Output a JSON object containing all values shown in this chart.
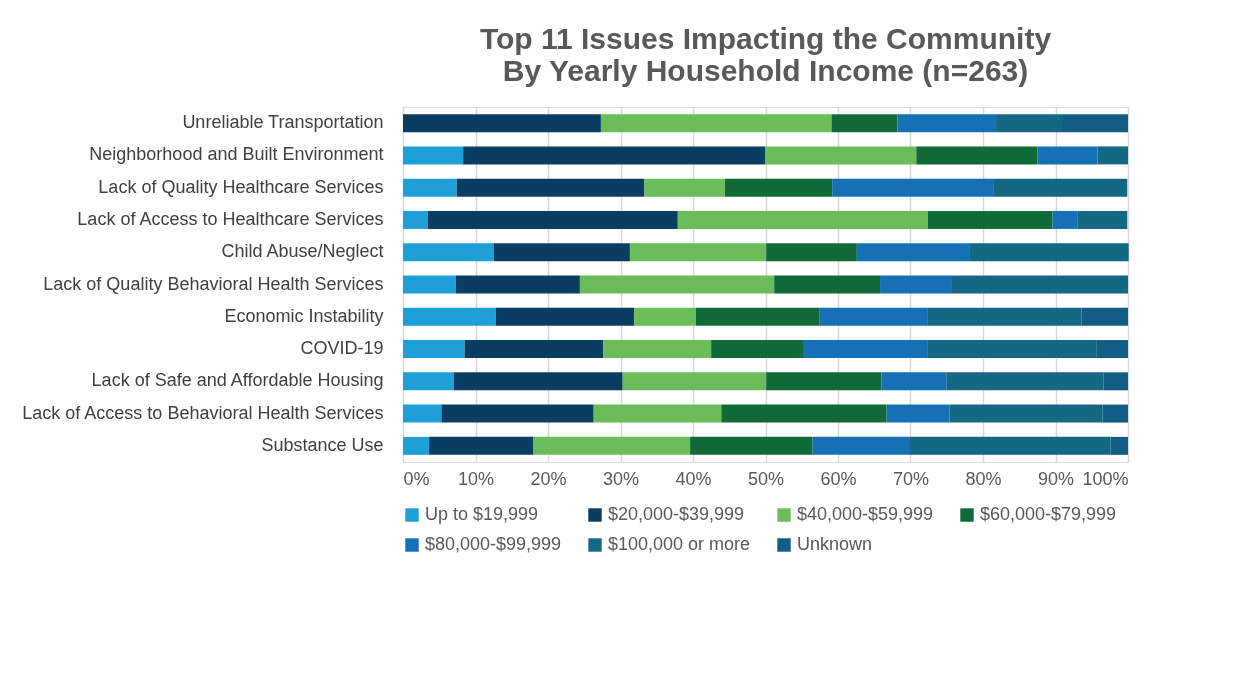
{
  "chart_data": {
    "type": "bar",
    "orientation": "horizontal",
    "stacked": true,
    "title": "Top 11 Issues Impacting the Community\nBy Yearly Household Income (n=263)",
    "categories": [
      "Unreliable Transportation",
      "Neighborhood and Built Environment",
      "Lack of Quality Healthcare Services",
      "Lack of Access to Healthcare Services",
      "Child Abuse/Neglect",
      "Lack of Quality Behavioral Health Services",
      "Economic Instability",
      "COVID-19",
      "Lack of Safe and Affordable Housing",
      "Lack of Access to Behavioral Health Services",
      "Substance Use"
    ],
    "series": [
      {
        "name": "Up to $19,999",
        "color": "#1f9fd8",
        "values": [
          0,
          8.3,
          7.4,
          3.4,
          12.5,
          7.3,
          12.8,
          8.5,
          7.0,
          5.3,
          3.6
        ]
      },
      {
        "name": "$20,000-$39,999",
        "color": "#0b3d63",
        "values": [
          27.3,
          41.7,
          25.9,
          34.5,
          18.8,
          17.1,
          19.1,
          19.1,
          23.3,
          21.0,
          14.4
        ]
      },
      {
        "name": "$40,000-$59,999",
        "color": "#6abd5a",
        "values": [
          31.8,
          20.8,
          11.1,
          34.5,
          18.8,
          26.8,
          8.5,
          14.9,
          19.8,
          17.6,
          21.6
        ]
      },
      {
        "name": "$60,000-$79,999",
        "color": "#106a38",
        "values": [
          9.1,
          16.7,
          14.8,
          17.2,
          12.5,
          14.6,
          17.0,
          12.8,
          15.9,
          22.8,
          16.9
        ]
      },
      {
        "name": "$80,000-$99,999",
        "color": "#1570b5",
        "values": [
          13.6,
          8.3,
          22.2,
          3.4,
          15.6,
          9.8,
          14.9,
          17.0,
          9.0,
          8.7,
          13.3
        ]
      },
      {
        "name": "$100,000 or more",
        "color": "#146883",
        "values": [
          9.1,
          4.2,
          18.5,
          6.9,
          21.9,
          24.4,
          21.3,
          23.4,
          21.6,
          21.1,
          27.8
        ]
      },
      {
        "name": "Unknown",
        "color": "#115d84",
        "values": [
          9.1,
          0,
          0,
          0,
          0,
          0,
          6.4,
          4.3,
          3.4,
          3.5,
          2.4
        ]
      }
    ],
    "xlim": [
      0,
      100
    ],
    "xticks": [
      {
        "value": 0,
        "label": "0%"
      },
      {
        "value": 10,
        "label": "10%"
      },
      {
        "value": 20,
        "label": "20%"
      },
      {
        "value": 30,
        "label": "30%"
      },
      {
        "value": 40,
        "label": "40%"
      },
      {
        "value": 50,
        "label": "50%"
      },
      {
        "value": 60,
        "label": "60%"
      },
      {
        "value": 70,
        "label": "70%"
      },
      {
        "value": 80,
        "label": "80%"
      },
      {
        "value": 90,
        "label": "90%"
      },
      {
        "value": 100,
        "label": "100%"
      }
    ],
    "grid": "x",
    "legend": "bottom"
  }
}
